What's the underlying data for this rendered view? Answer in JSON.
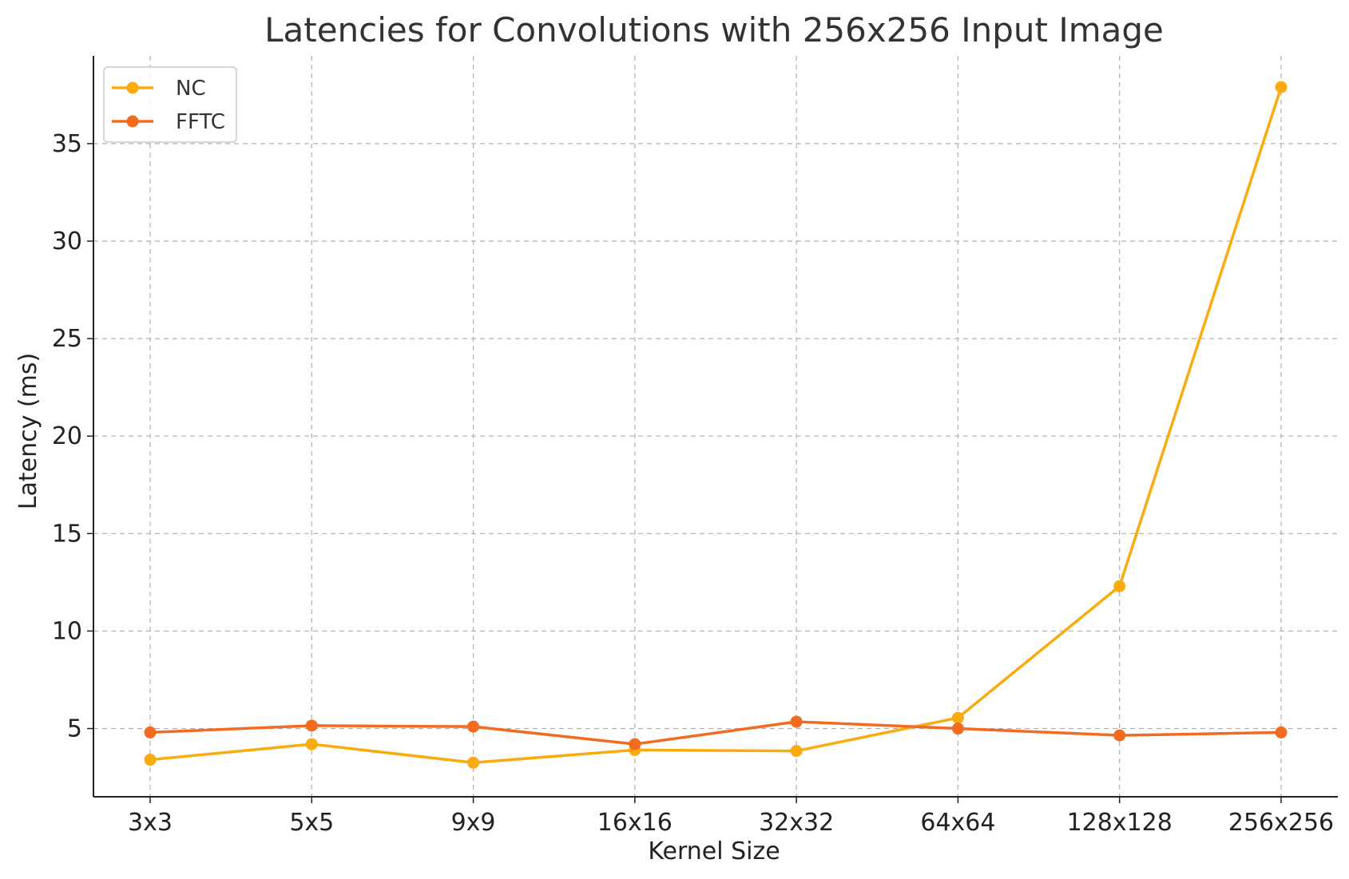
{
  "chart_data": {
    "type": "line",
    "title": "Latencies for Convolutions with 256x256 Input Image",
    "xlabel": "Kernel Size",
    "ylabel": "Latency (ms)",
    "categories": [
      "3x3",
      "5x5",
      "9x9",
      "16x16",
      "32x32",
      "64x64",
      "128x128",
      "256x256"
    ],
    "ylim": [
      1.5,
      39.5
    ],
    "yticks": [
      5,
      10,
      15,
      20,
      25,
      30,
      35
    ],
    "grid": true,
    "legend_position": "top-left",
    "series": [
      {
        "name": "NC",
        "color": "#f9ab0f",
        "values": [
          3.4,
          4.2,
          3.25,
          3.9,
          3.85,
          5.55,
          12.3,
          37.9
        ]
      },
      {
        "name": "FFTC",
        "color": "#f26b21",
        "values": [
          4.8,
          5.15,
          5.1,
          4.2,
          5.35,
          5.0,
          4.65,
          4.8
        ]
      }
    ]
  }
}
